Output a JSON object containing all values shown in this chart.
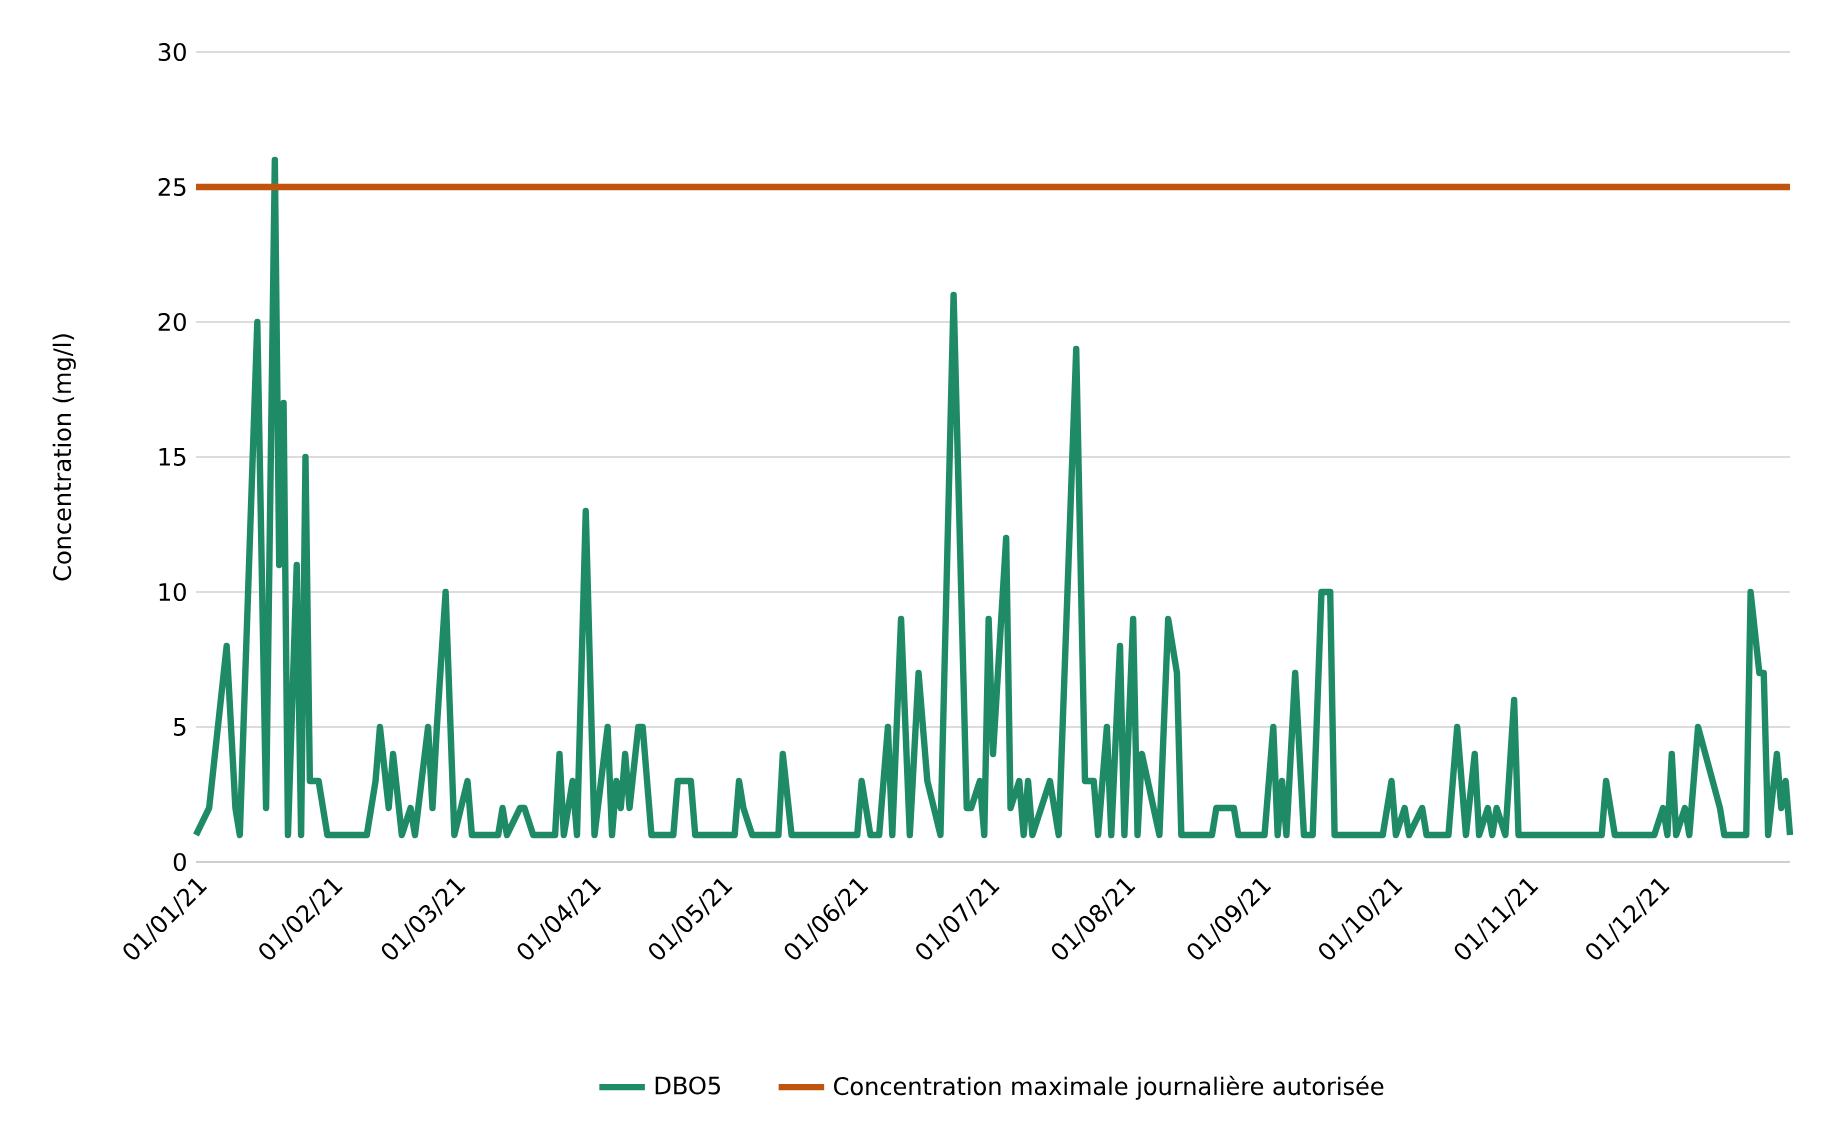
{
  "chart_data": {
    "type": "line",
    "ylabel": "Concentration (mg/l)",
    "x": [
      "2021-01-01",
      "2021-01-04",
      "2021-01-08",
      "2021-01-10",
      "2021-01-11",
      "2021-01-15",
      "2021-01-17",
      "2021-01-19",
      "2021-01-20",
      "2021-01-21",
      "2021-01-22",
      "2021-01-24",
      "2021-01-25",
      "2021-01-26",
      "2021-01-27",
      "2021-01-29",
      "2021-01-31",
      "2021-02-09",
      "2021-02-11",
      "2021-02-12",
      "2021-02-14",
      "2021-02-15",
      "2021-02-17",
      "2021-02-19",
      "2021-02-20",
      "2021-02-23",
      "2021-02-24",
      "2021-02-25",
      "2021-02-27",
      "2021-03-01",
      "2021-03-04",
      "2021-03-05",
      "2021-03-11",
      "2021-03-12",
      "2021-03-13",
      "2021-03-16",
      "2021-03-17",
      "2021-03-19",
      "2021-03-24",
      "2021-03-25",
      "2021-03-26",
      "2021-03-28",
      "2021-03-29",
      "2021-03-31",
      "2021-04-02",
      "2021-04-05",
      "2021-04-06",
      "2021-04-07",
      "2021-04-08",
      "2021-04-09",
      "2021-04-10",
      "2021-04-12",
      "2021-04-13",
      "2021-04-15",
      "2021-04-20",
      "2021-04-21",
      "2021-04-24",
      "2021-04-25",
      "2021-05-04",
      "2021-05-05",
      "2021-05-06",
      "2021-05-08",
      "2021-05-14",
      "2021-05-15",
      "2021-05-17",
      "2021-06-01",
      "2021-06-02",
      "2021-06-04",
      "2021-06-06",
      "2021-06-08",
      "2021-06-09",
      "2021-06-11",
      "2021-06-13",
      "2021-06-15",
      "2021-06-17",
      "2021-06-20",
      "2021-06-23",
      "2021-06-26",
      "2021-06-27",
      "2021-06-29",
      "2021-06-30",
      "2021-07-01",
      "2021-07-02",
      "2021-07-05",
      "2021-07-06",
      "2021-07-08",
      "2021-07-09",
      "2021-07-10",
      "2021-07-11",
      "2021-07-13",
      "2021-07-15",
      "2021-07-17",
      "2021-07-21",
      "2021-07-23",
      "2021-07-25",
      "2021-07-26",
      "2021-07-28",
      "2021-07-29",
      "2021-07-31",
      "2021-08-01",
      "2021-08-03",
      "2021-08-04",
      "2021-08-05",
      "2021-08-09",
      "2021-08-11",
      "2021-08-13",
      "2021-08-14",
      "2021-08-21",
      "2021-08-22",
      "2021-08-26",
      "2021-08-27",
      "2021-09-02",
      "2021-09-04",
      "2021-09-05",
      "2021-09-06",
      "2021-09-07",
      "2021-09-09",
      "2021-09-11",
      "2021-09-13",
      "2021-09-15",
      "2021-09-17",
      "2021-09-18",
      "2021-09-29",
      "2021-10-01",
      "2021-10-02",
      "2021-10-04",
      "2021-10-05",
      "2021-10-08",
      "2021-10-09",
      "2021-10-14",
      "2021-10-16",
      "2021-10-18",
      "2021-10-20",
      "2021-10-21",
      "2021-10-23",
      "2021-10-24",
      "2021-10-25",
      "2021-10-27",
      "2021-10-29",
      "2021-10-30",
      "2021-11-18",
      "2021-11-19",
      "2021-11-21",
      "2021-11-30",
      "2021-12-02",
      "2021-12-03",
      "2021-12-04",
      "2021-12-05",
      "2021-12-07",
      "2021-12-08",
      "2021-12-10",
      "2021-12-15",
      "2021-12-16",
      "2021-12-21",
      "2021-12-22",
      "2021-12-24",
      "2021-12-25",
      "2021-12-26",
      "2021-12-28",
      "2021-12-29",
      "2021-12-30",
      "2021-12-31"
    ],
    "series": [
      {
        "name": "DBO5",
        "color": "#1f8a66",
        "values": [
          1,
          2,
          8,
          2,
          1,
          20,
          2,
          26,
          11,
          17,
          1,
          11,
          1,
          15,
          3,
          3,
          1,
          1,
          3,
          5,
          2,
          4,
          1,
          2,
          1,
          5,
          2,
          5,
          10,
          1,
          3,
          1,
          1,
          2,
          1,
          2,
          2,
          1,
          1,
          4,
          1,
          3,
          1,
          13,
          1,
          5,
          1,
          3,
          2,
          4,
          2,
          5,
          5,
          1,
          1,
          3,
          3,
          1,
          1,
          3,
          2,
          1,
          1,
          4,
          1,
          1,
          3,
          1,
          1,
          5,
          1,
          9,
          1,
          7,
          3,
          1,
          21,
          2,
          2,
          3,
          1,
          9,
          4,
          12,
          2,
          3,
          1,
          3,
          1,
          2,
          3,
          1,
          19,
          3,
          3,
          1,
          5,
          1,
          8,
          1,
          9,
          1,
          4,
          1,
          9,
          7,
          1,
          1,
          2,
          2,
          1,
          1,
          5,
          1,
          3,
          1,
          7,
          1,
          1,
          10,
          10,
          1,
          1,
          3,
          1,
          2,
          1,
          2,
          1,
          1,
          5,
          1,
          4,
          1,
          2,
          1,
          2,
          1,
          6,
          1,
          1,
          3,
          1,
          1,
          2,
          1,
          4,
          1,
          2,
          1,
          5,
          2,
          1,
          1,
          10,
          7,
          7,
          1,
          4,
          2,
          3,
          1
        ]
      }
    ],
    "ref_lines": [
      {
        "axis": "y",
        "value": 25,
        "label": "Concentration maximale journalière autorisée",
        "color": "#c0540e"
      }
    ],
    "xlim": [
      "2021-01-01",
      "2021-12-31"
    ],
    "xticks": [
      {
        "value": "2021-01-01",
        "label": "01/01/21"
      },
      {
        "value": "2021-02-01",
        "label": "01/02/21"
      },
      {
        "value": "2021-03-01",
        "label": "01/03/21"
      },
      {
        "value": "2021-04-01",
        "label": "01/04/21"
      },
      {
        "value": "2021-05-01",
        "label": "01/05/21"
      },
      {
        "value": "2021-06-01",
        "label": "01/06/21"
      },
      {
        "value": "2021-07-01",
        "label": "01/07/21"
      },
      {
        "value": "2021-08-01",
        "label": "01/08/21"
      },
      {
        "value": "2021-09-01",
        "label": "01/09/21"
      },
      {
        "value": "2021-10-01",
        "label": "01/10/21"
      },
      {
        "value": "2021-11-01",
        "label": "01/11/21"
      },
      {
        "value": "2021-12-01",
        "label": "01/12/21"
      }
    ],
    "ylim": [
      0,
      30
    ],
    "yticks": [
      0,
      5,
      10,
      15,
      20,
      25,
      30
    ],
    "grid": "y",
    "legend": "bottom",
    "marker": "none",
    "line_style": "solid"
  }
}
